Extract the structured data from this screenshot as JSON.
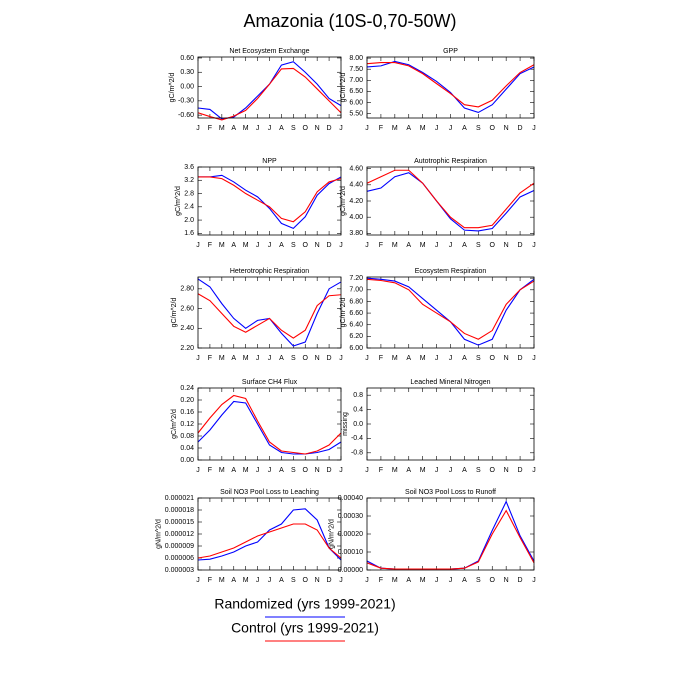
{
  "title": "Amazonia (10S-0,70-50W)",
  "legend": [
    {
      "name": "Randomized (yrs 1999-2021)",
      "color": "#0000ff"
    },
    {
      "name": "Control (yrs 1999-2021)",
      "color": "#ff0000"
    }
  ],
  "chart_data": [
    {
      "type": "line",
      "title": "Net Ecosystem Exchange",
      "ylabel": "gC/m^2/d",
      "categories": [
        "J",
        "F",
        "M",
        "A",
        "M",
        "J",
        "J",
        "A",
        "S",
        "O",
        "N",
        "D",
        "J"
      ],
      "series": [
        {
          "values": [
            -0.45,
            -0.48,
            -0.68,
            -0.64,
            -0.45,
            -0.2,
            0.05,
            0.45,
            0.52,
            0.3,
            0.05,
            -0.25,
            -0.4
          ]
        },
        {
          "values": [
            -0.55,
            -0.63,
            -0.7,
            -0.62,
            -0.5,
            -0.25,
            0.05,
            0.37,
            0.38,
            0.2,
            -0.05,
            -0.3,
            -0.55
          ]
        }
      ],
      "ylim": [
        -0.66,
        0.62
      ],
      "yticks": [
        {
          "value": 0.6,
          "label": "0.60"
        },
        {
          "value": 0.3,
          "label": "0.30"
        },
        {
          "value": 0,
          "label": "0.00"
        },
        {
          "value": -0.3,
          "label": "-0.30"
        },
        {
          "value": -0.6,
          "label": "-0.60"
        }
      ]
    },
    {
      "type": "line",
      "title": "GPP",
      "ylabel": "gC/m^2/d",
      "categories": [
        "J",
        "F",
        "M",
        "A",
        "M",
        "J",
        "J",
        "A",
        "S",
        "O",
        "N",
        "D",
        "J"
      ],
      "series": [
        {
          "values": [
            7.6,
            7.65,
            7.85,
            7.7,
            7.35,
            6.95,
            6.45,
            5.75,
            5.55,
            5.9,
            6.6,
            7.3,
            7.6
          ]
        },
        {
          "values": [
            7.75,
            7.8,
            7.8,
            7.65,
            7.3,
            6.85,
            6.4,
            5.9,
            5.8,
            6.1,
            6.75,
            7.35,
            7.7
          ]
        }
      ],
      "ylim": [
        5.3,
        8.05
      ],
      "yticks": [
        {
          "value": 8,
          "label": "8.00"
        },
        {
          "value": 7.5,
          "label": "7.50"
        },
        {
          "value": 7,
          "label": "7.00"
        },
        {
          "value": 6.5,
          "label": "6.50"
        },
        {
          "value": 6,
          "label": "6.00"
        },
        {
          "value": 5.5,
          "label": "5.50"
        }
      ]
    },
    {
      "type": "line",
      "title": "NPP",
      "ylabel": "gC/m^2/d",
      "categories": [
        "J",
        "F",
        "M",
        "A",
        "M",
        "J",
        "J",
        "A",
        "S",
        "O",
        "N",
        "D",
        "J"
      ],
      "series": [
        {
          "values": [
            3.3,
            3.3,
            3.35,
            3.15,
            2.9,
            2.7,
            2.35,
            1.9,
            1.75,
            2.1,
            2.75,
            3.1,
            3.3
          ]
        },
        {
          "values": [
            3.3,
            3.3,
            3.25,
            3.05,
            2.8,
            2.6,
            2.4,
            2.05,
            1.95,
            2.25,
            2.85,
            3.15,
            3.25
          ]
        }
      ],
      "ylim": [
        1.55,
        3.6
      ],
      "yticks": [
        3.6,
        3.2,
        2.8,
        2.4,
        {
          "value": 2,
          "label": "2.0"
        },
        1.6
      ]
    },
    {
      "type": "line",
      "title": "Autotrophic Respiration",
      "ylabel": "gC/m^2/d",
      "categories": [
        "J",
        "F",
        "M",
        "A",
        "M",
        "J",
        "J",
        "A",
        "S",
        "O",
        "N",
        "D",
        "J"
      ],
      "series": [
        {
          "values": [
            4.32,
            4.36,
            4.5,
            4.55,
            4.42,
            4.2,
            3.98,
            3.84,
            3.83,
            3.86,
            4.05,
            4.25,
            4.33
          ]
        },
        {
          "values": [
            4.42,
            4.5,
            4.58,
            4.58,
            4.42,
            4.2,
            4.0,
            3.87,
            3.87,
            3.9,
            4.1,
            4.3,
            4.42
          ]
        }
      ],
      "ylim": [
        3.78,
        4.62
      ],
      "yticks": [
        {
          "value": 4.6,
          "label": "4.60"
        },
        {
          "value": 4.4,
          "label": "4.40"
        },
        {
          "value": 4.2,
          "label": "4.20"
        },
        {
          "value": 4,
          "label": "4.00"
        },
        {
          "value": 3.8,
          "label": "3.80"
        }
      ]
    },
    {
      "type": "line",
      "title": "Heterotrophic Respiration",
      "ylabel": "gC/m^2/d",
      "categories": [
        "J",
        "F",
        "M",
        "A",
        "M",
        "J",
        "J",
        "A",
        "S",
        "O",
        "N",
        "D",
        "J"
      ],
      "series": [
        {
          "values": [
            2.9,
            2.82,
            2.65,
            2.5,
            2.4,
            2.48,
            2.5,
            2.35,
            2.22,
            2.26,
            2.55,
            2.8,
            2.87
          ]
        },
        {
          "values": [
            2.75,
            2.68,
            2.55,
            2.42,
            2.36,
            2.43,
            2.5,
            2.38,
            2.3,
            2.38,
            2.63,
            2.73,
            2.74
          ]
        }
      ],
      "ylim": [
        2.2,
        2.92
      ],
      "yticks": [
        {
          "value": 2.8,
          "label": "2.80"
        },
        {
          "value": 2.6,
          "label": "2.60"
        },
        {
          "value": 2.4,
          "label": "2.40"
        },
        {
          "value": 2.2,
          "label": "2.20"
        }
      ]
    },
    {
      "type": "line",
      "title": "Ecosystem Respiration",
      "ylabel": "gC/m^2/d",
      "categories": [
        "J",
        "F",
        "M",
        "A",
        "M",
        "J",
        "J",
        "A",
        "S",
        "O",
        "N",
        "D",
        "J"
      ],
      "series": [
        {
          "values": [
            7.2,
            7.18,
            7.15,
            7.05,
            6.85,
            6.65,
            6.45,
            6.15,
            6.05,
            6.15,
            6.65,
            7.0,
            7.18
          ]
        },
        {
          "values": [
            7.18,
            7.16,
            7.12,
            7.0,
            6.75,
            6.6,
            6.45,
            6.25,
            6.15,
            6.3,
            6.75,
            7.0,
            7.15
          ]
        }
      ],
      "ylim": [
        6.0,
        7.22
      ],
      "yticks": [
        {
          "value": 7.2,
          "label": "7.20"
        },
        {
          "value": 7,
          "label": "7.00"
        },
        {
          "value": 6.8,
          "label": "6.80"
        },
        {
          "value": 6.6,
          "label": "6.60"
        },
        {
          "value": 6.4,
          "label": "6.40"
        },
        {
          "value": 6.2,
          "label": "6.20"
        },
        {
          "value": 6,
          "label": "6.00"
        }
      ]
    },
    {
      "type": "line",
      "title": "Surface CH4 Flux",
      "ylabel": "gC/m^2/d",
      "categories": [
        "J",
        "F",
        "M",
        "A",
        "M",
        "J",
        "J",
        "A",
        "S",
        "O",
        "N",
        "D",
        "J"
      ],
      "series": [
        {
          "values": [
            0.06,
            0.1,
            0.15,
            0.195,
            0.19,
            0.12,
            0.05,
            0.025,
            0.02,
            0.02,
            0.025,
            0.035,
            0.06
          ]
        },
        {
          "values": [
            0.09,
            0.14,
            0.185,
            0.215,
            0.205,
            0.13,
            0.06,
            0.03,
            0.025,
            0.02,
            0.03,
            0.05,
            0.09
          ]
        }
      ],
      "ylim": [
        0,
        0.24
      ],
      "yticks": [
        0.24,
        {
          "value": 0.2,
          "label": "0.20"
        },
        0.16,
        0.12,
        0.08,
        0.04,
        {
          "value": 0,
          "label": "0.00"
        }
      ]
    },
    {
      "type": "line",
      "title": "Leached Mineral Nitrogen",
      "ylabel": "missing",
      "categories": [
        "J",
        "F",
        "M",
        "A",
        "M",
        "J",
        "J",
        "A",
        "S",
        "O",
        "N",
        "D",
        "J"
      ],
      "series": [],
      "ylim": [
        -1,
        1
      ],
      "yticks": [
        0.8,
        0.4,
        {
          "value": 0,
          "label": "0.0"
        },
        -0.4,
        -0.8
      ]
    },
    {
      "type": "line",
      "title": "Soil NO3 Pool Loss to Leaching",
      "ylabel": "gN/m^2/d",
      "categories": [
        "J",
        "F",
        "M",
        "A",
        "M",
        "J",
        "J",
        "A",
        "S",
        "O",
        "N",
        "D",
        "J"
      ],
      "series": [
        {
          "values": [
            5.5e-06,
            5.7e-06,
            6.5e-06,
            7.5e-06,
            9e-06,
            1e-05,
            1.3e-05,
            1.45e-05,
            1.8e-05,
            1.83e-05,
            1.55e-05,
            8.5e-06,
            5.5e-06
          ]
        },
        {
          "values": [
            6e-06,
            6.5e-06,
            7.5e-06,
            8.5e-06,
            1e-05,
            1.15e-05,
            1.25e-05,
            1.35e-05,
            1.45e-05,
            1.45e-05,
            1.3e-05,
            8.5e-06,
            6e-06
          ]
        }
      ],
      "ylim": [
        3e-06,
        2.1e-05
      ],
      "yticks": [
        2.1e-05,
        1.8e-05,
        1.5e-05,
        1.2e-05,
        9e-06,
        6e-06,
        3e-06
      ]
    },
    {
      "type": "line",
      "title": "Soil NO3 Pool Loss to Runoff",
      "ylabel": "gN/m^2/d",
      "categories": [
        "J",
        "F",
        "M",
        "A",
        "M",
        "J",
        "J",
        "A",
        "S",
        "O",
        "N",
        "D",
        "J"
      ],
      "series": [
        {
          "values": [
            5e-05,
            1e-05,
            5e-06,
            5e-06,
            5e-06,
            5e-06,
            5e-06,
            1e-05,
            5e-05,
            0.00022,
            0.00038,
            0.00019,
            5e-05
          ]
        },
        {
          "values": [
            4e-05,
            1e-05,
            5e-06,
            5e-06,
            5e-06,
            5e-06,
            5e-06,
            1e-05,
            4.5e-05,
            0.0002,
            0.00033,
            0.00018,
            4e-05
          ]
        }
      ],
      "ylim": [
        0,
        0.0004
      ],
      "yticks": [
        {
          "value": 0.0004,
          "label": "0.00040"
        },
        {
          "value": 0.0003,
          "label": "0.00030"
        },
        {
          "value": 0.0002,
          "label": "0.00020"
        },
        {
          "value": 0.0001,
          "label": "0.00010"
        },
        {
          "value": 0,
          "label": "0.00000"
        }
      ]
    }
  ]
}
